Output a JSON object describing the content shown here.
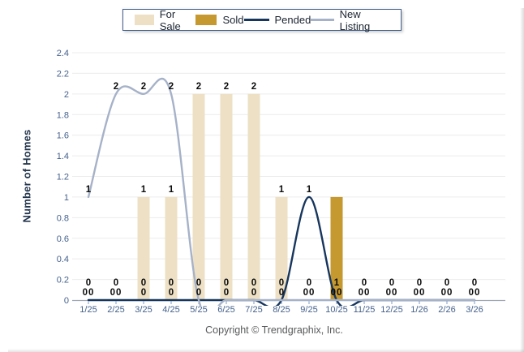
{
  "legend": {
    "items": [
      {
        "label": "For Sale",
        "type": "swatch",
        "color": "#EDE0C5"
      },
      {
        "label": "Sold",
        "type": "swatch",
        "color": "#C69930"
      },
      {
        "label": "Pended",
        "type": "line",
        "color": "#17365D"
      },
      {
        "label": "New Listing",
        "type": "line",
        "color": "#A6B2C8"
      }
    ]
  },
  "axes": {
    "y_title": "Number of Homes",
    "y_ticks": [
      "0",
      "0.2",
      "0.4",
      "0.6",
      "0.8",
      "1",
      "1.2",
      "1.4",
      "1.6",
      "1.8",
      "2",
      "2.2",
      "2.4"
    ],
    "x_labels": [
      "1/25",
      "2/25",
      "3/25",
      "4/25",
      "5/25",
      "6/25",
      "7/25",
      "8/25",
      "9/25",
      "10/25",
      "11/25",
      "12/25",
      "1/26",
      "2/26",
      "3/26"
    ]
  },
  "chart_data": {
    "type": "combo",
    "categories": [
      "1/25",
      "2/25",
      "3/25",
      "4/25",
      "5/25",
      "6/25",
      "7/25",
      "8/25",
      "9/25",
      "10/25",
      "11/25",
      "12/25",
      "1/26",
      "2/26",
      "3/26"
    ],
    "series": [
      {
        "name": "For Sale",
        "type": "bar",
        "color": "#EDE0C5",
        "values": [
          0,
          0,
          1,
          1,
          2,
          2,
          2,
          1,
          0,
          0,
          0,
          0,
          0,
          0,
          0
        ]
      },
      {
        "name": "Sold",
        "type": "bar",
        "color": "#C69930",
        "values": [
          0,
          0,
          0,
          0,
          0,
          0,
          0,
          0,
          0,
          1,
          0,
          0,
          0,
          0,
          0
        ]
      },
      {
        "name": "Pended",
        "type": "line",
        "color": "#17365D",
        "values": [
          0,
          0,
          0,
          0,
          0,
          0,
          0,
          0,
          1,
          0,
          0,
          0,
          0,
          0,
          0
        ]
      },
      {
        "name": "New Listing",
        "type": "line",
        "color": "#A6B2C8",
        "values": [
          1,
          2,
          2,
          2,
          0,
          0,
          0,
          0,
          0,
          0,
          0,
          0,
          0,
          0,
          0
        ]
      }
    ],
    "title": "",
    "xlabel": "",
    "ylabel": "Number of Homes",
    "ylim": [
      0,
      2.4
    ],
    "grid": true,
    "legend_position": "top"
  },
  "labels": {
    "points": [
      {
        "i": 0,
        "v": 1,
        "text": "1"
      },
      {
        "i": 1,
        "v": 2,
        "text": "2"
      },
      {
        "i": 2,
        "v": 2,
        "text": "2"
      },
      {
        "i": 2,
        "v": 1,
        "text": "1"
      },
      {
        "i": 3,
        "v": 2,
        "text": "2"
      },
      {
        "i": 3,
        "v": 1,
        "text": "1"
      },
      {
        "i": 4,
        "v": 2,
        "text": "2"
      },
      {
        "i": 5,
        "v": 2,
        "text": "2"
      },
      {
        "i": 6,
        "v": 2,
        "text": "2"
      },
      {
        "i": 7,
        "v": 1,
        "text": "1"
      },
      {
        "i": 8,
        "v": 1,
        "text": "1"
      }
    ],
    "bottom_upper": [
      "0",
      "0",
      "0",
      "0",
      "0",
      "0",
      "0",
      "0",
      "0",
      "1",
      "0",
      "0",
      "0",
      "0",
      "0"
    ],
    "bottom_lower": [
      "00",
      "00",
      "0",
      "0",
      "0",
      "0",
      "0",
      "0",
      "00",
      "00",
      "00",
      "00",
      "00",
      "00",
      "00"
    ]
  },
  "footer": {
    "copyright": "Copyright © Trendgraphix, Inc."
  },
  "colors": {
    "for_sale": "#EDE0C5",
    "sold": "#C69930",
    "pended": "#17365D",
    "new_listing": "#A6B2C8",
    "grid_line": "#ECECEC",
    "axis_line": "#9FA8B4",
    "category_tick": "#7E9BC8",
    "axis_text": "#44618C",
    "value_label_text": "#0B0B0B",
    "y_title_text": "#22344C",
    "legend_border": "#44618C",
    "footer_text": "#58595B"
  }
}
